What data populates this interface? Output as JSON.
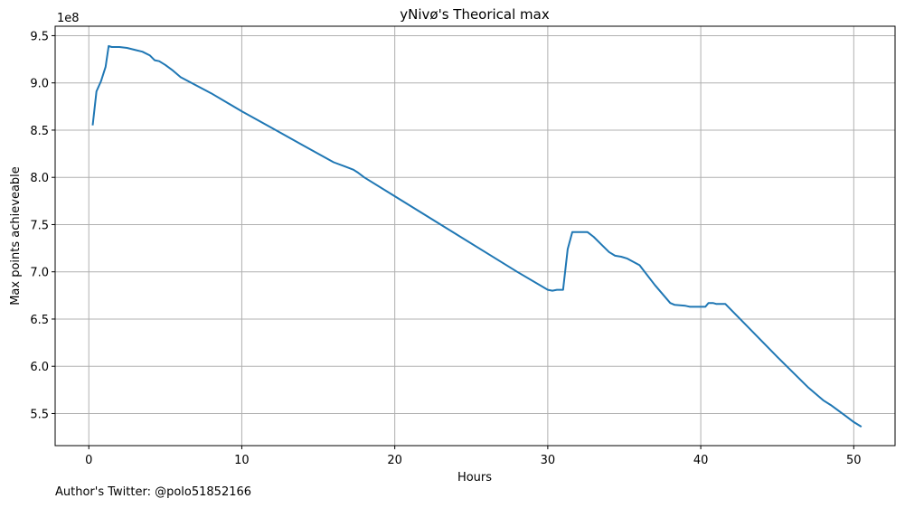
{
  "chart_data": {
    "type": "line",
    "title": "yNivø's Theorical max",
    "xlabel": "Hours",
    "ylabel": "Max points achieveable",
    "y_offset_label": "1e8",
    "xlim": [
      -2.2,
      52.7
    ],
    "ylim": [
      5.16,
      9.6
    ],
    "xticks": [
      0,
      10,
      20,
      30,
      40,
      50
    ],
    "yticks": [
      5.5,
      6.0,
      6.5,
      7.0,
      7.5,
      8.0,
      8.5,
      9.0,
      9.5
    ],
    "ytick_labels": [
      "5.5",
      "6.0",
      "6.5",
      "7.0",
      "7.5",
      "8.0",
      "8.5",
      "9.0",
      "9.5"
    ],
    "y_unit": "× 1e8",
    "grid": true,
    "line_color": "#1f77b4",
    "series": [
      {
        "x": [
          0.25,
          0.5,
          0.8,
          1.1,
          1.3,
          1.5,
          2.0,
          2.5,
          3.0,
          3.5,
          4.0,
          4.3,
          4.6,
          5.0,
          5.5,
          6.0,
          8.0,
          10.0,
          12.0,
          14.0,
          16.0,
          17.0,
          17.3,
          17.6,
          18.0,
          20.0,
          22.0,
          24.0,
          26.0,
          28.0,
          30.0,
          30.3,
          30.6,
          31.0,
          31.3,
          31.6,
          31.9,
          32.2,
          32.6,
          33.0,
          33.5,
          34.0,
          34.4,
          34.8,
          35.2,
          36.0,
          37.0,
          38.0,
          38.3,
          39.0,
          39.3,
          39.6,
          40.0,
          40.3,
          40.5,
          40.8,
          41.0,
          41.3,
          41.6,
          43.0,
          45.0,
          47.0,
          48.0,
          48.5,
          49.0,
          49.5,
          50.0,
          50.5
        ],
        "values": [
          8.55,
          8.91,
          9.02,
          9.17,
          9.39,
          9.38,
          9.38,
          9.37,
          9.35,
          9.33,
          9.29,
          9.24,
          9.23,
          9.19,
          9.13,
          9.06,
          8.89,
          8.7,
          8.52,
          8.34,
          8.16,
          8.1,
          8.08,
          8.05,
          8.0,
          7.8,
          7.6,
          7.4,
          7.2,
          7.0,
          6.81,
          6.8,
          6.81,
          6.81,
          7.24,
          7.42,
          7.42,
          7.42,
          7.42,
          7.37,
          7.29,
          7.21,
          7.17,
          7.16,
          7.14,
          7.07,
          6.86,
          6.67,
          6.65,
          6.64,
          6.63,
          6.63,
          6.63,
          6.63,
          6.67,
          6.67,
          6.66,
          6.66,
          6.66,
          6.43,
          6.1,
          5.78,
          5.64,
          5.59,
          5.53,
          5.47,
          5.41,
          5.36
        ]
      }
    ]
  },
  "footer": "Author's Twitter: @polo51852166"
}
